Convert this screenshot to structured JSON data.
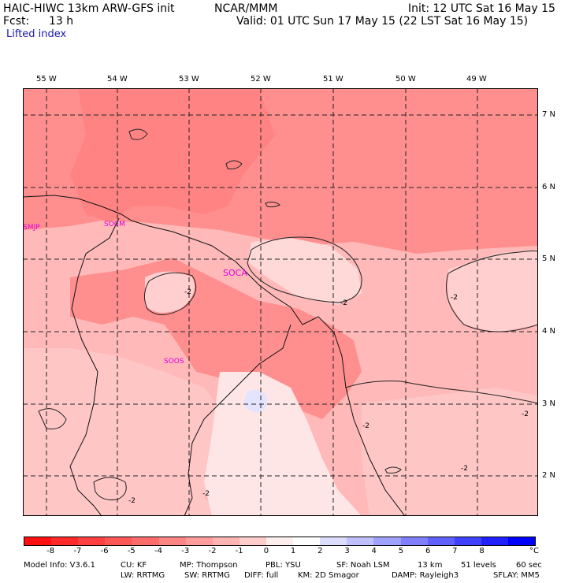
{
  "header": {
    "model": "HAIC-HIWC 13km ARW-GFS init",
    "org": "NCAR/MMM",
    "init": "Init: 12 UTC Sat 16 May 15",
    "fcst_label": "Fcst:",
    "fcst_value": "13 h",
    "valid": "Valid: 01 UTC Sun 17 May 15 (22 LST Sat 16 May 15)",
    "field": "Lifted index"
  },
  "map": {
    "lon_labels": [
      "55 W",
      "54 W",
      "53 W",
      "52 W",
      "51 W",
      "50 W",
      "49 W"
    ],
    "lat_labels": [
      "7 N",
      "6 N",
      "5 N",
      "4 N",
      "3 N",
      "2 N"
    ],
    "stations": [
      "SMJP",
      "SOCM",
      "SOCA",
      "SOOS"
    ],
    "contour_label": "-2",
    "colors": {
      "bg_light": "#ffc4c4",
      "bg_mid": "#ff9a9a",
      "bg_dark": "#ff7a7a",
      "near_zero": "#fff0f0",
      "positive": "#e8e8ff"
    }
  },
  "colorbar": {
    "unit": "°C",
    "ticks": [
      "-8",
      "-7",
      "-6",
      "-5",
      "-4",
      "-3",
      "-2",
      "-1",
      "0",
      "1",
      "2",
      "3",
      "4",
      "5",
      "6",
      "7",
      "8"
    ],
    "colors": [
      "#ff1010",
      "#ff2a2a",
      "#ff4040",
      "#ff5656",
      "#ff6c6c",
      "#ff8484",
      "#ff9c9c",
      "#ffb4b4",
      "#ffcccc",
      "#ffeeee",
      "#ffffff",
      "#dcdcff",
      "#c0c0ff",
      "#a0a0ff",
      "#8080ff",
      "#6060ff",
      "#4040ff",
      "#2020ff",
      "#0000ff"
    ]
  },
  "footer": {
    "line1_a": "Model Info: V3.6.1",
    "line1_b": "CU: KF",
    "line1_c": "MP: Thompson",
    "line1_d": "PBL: YSU",
    "line1_e": "SF: Noah LSM",
    "line1_f": "13 km",
    "line1_g": "51 levels",
    "line1_h": "60 sec",
    "line2_a": "LW: RRTMG",
    "line2_b": "SW: RRTMG",
    "line2_c": "DIFF: full",
    "line2_d": "KM: 2D Smagor",
    "line2_e": "DAMP: Rayleigh3",
    "line2_f": "SFLAY: MM5"
  }
}
